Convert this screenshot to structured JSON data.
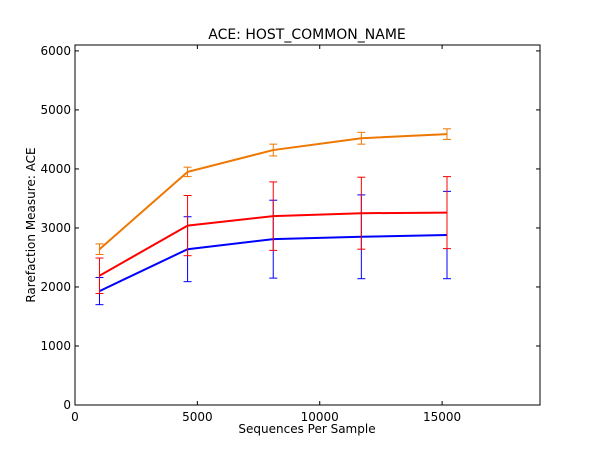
{
  "chart_data": {
    "type": "line",
    "title": "ACE: HOST_COMMON_NAME",
    "xlabel": "Sequences Per Sample",
    "ylabel": "Rarefaction Measure: ACE",
    "xlim": [
      0,
      19000
    ],
    "ylim": [
      0,
      6100
    ],
    "xticks": [
      0,
      5000,
      10000,
      15000
    ],
    "yticks": [
      0,
      1000,
      2000,
      3000,
      4000,
      5000,
      6000
    ],
    "grid": false,
    "legend": "none",
    "x": [
      1000,
      4600,
      8100,
      11700,
      15200
    ],
    "series": [
      {
        "color": "#0000ff",
        "values": [
          1930,
          2640,
          2810,
          2850,
          2880
        ],
        "errors": [
          230,
          550,
          660,
          710,
          740
        ]
      },
      {
        "color": "#ff0000",
        "values": [
          2190,
          3040,
          3200,
          3250,
          3260
        ],
        "errors": [
          300,
          510,
          580,
          610,
          610
        ]
      },
      {
        "color": "#ee7700",
        "values": [
          2640,
          3950,
          4320,
          4520,
          4590
        ],
        "errors": [
          90,
          80,
          100,
          100,
          90
        ]
      }
    ]
  }
}
